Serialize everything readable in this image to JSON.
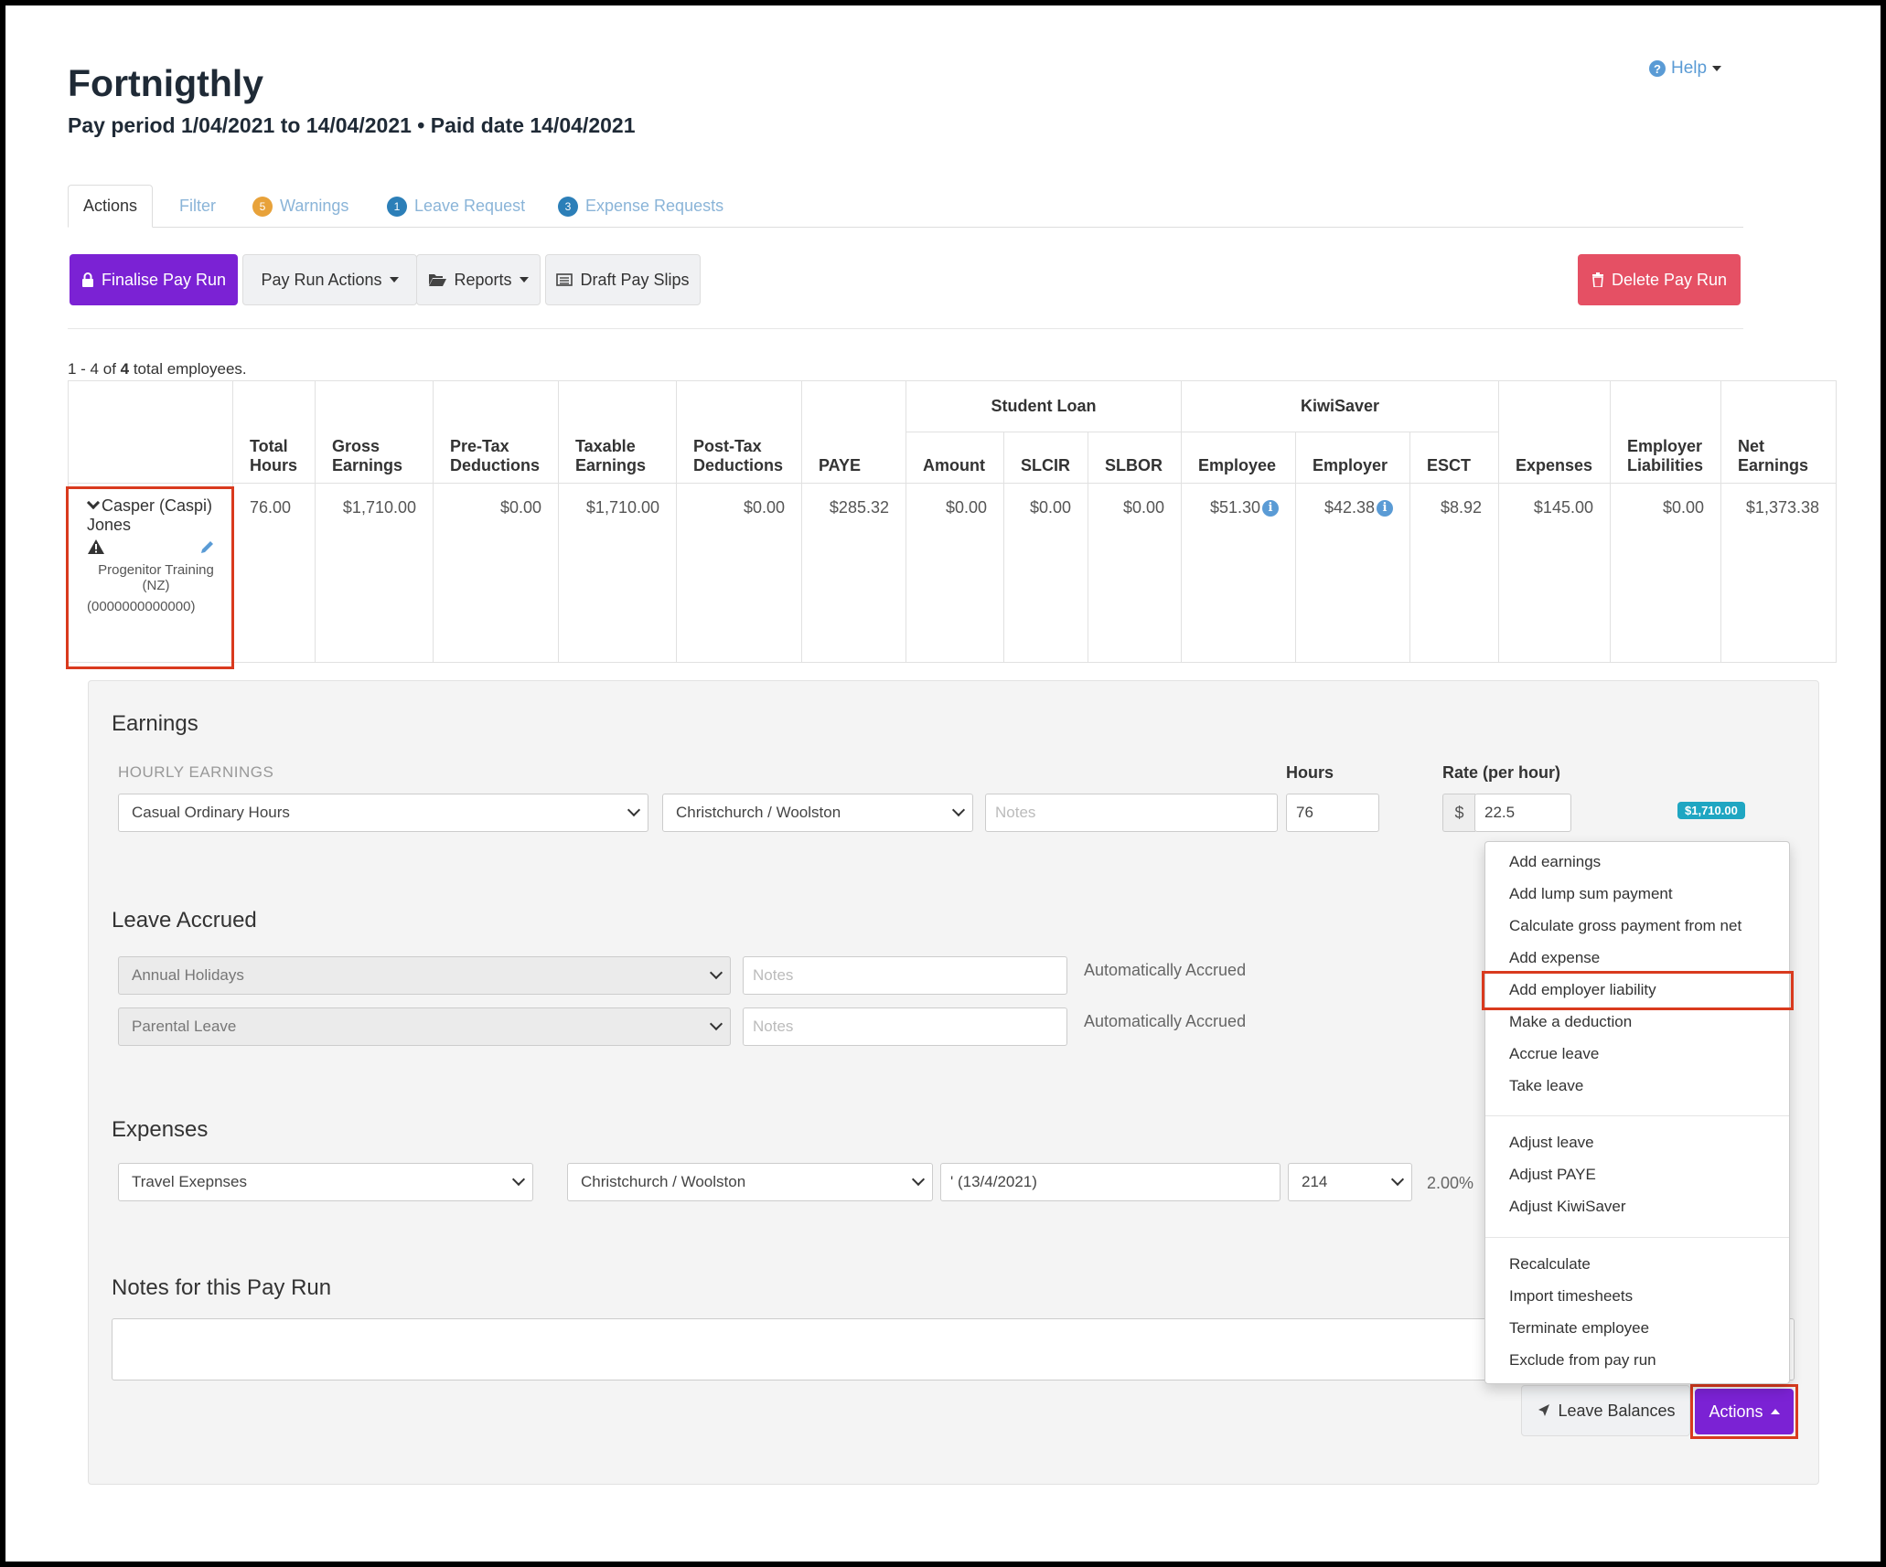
{
  "header": {
    "title": "Fortnigthly",
    "subtitle": "Pay period 1/04/2021 to 14/04/2021 • Paid date 14/04/2021",
    "help_label": "Help"
  },
  "tabs": [
    {
      "label": "Actions"
    },
    {
      "label": "Filter"
    },
    {
      "label": "Warnings",
      "badge": "5",
      "badge_color": "#e8a23a"
    },
    {
      "label": "Leave Request",
      "badge": "1",
      "badge_color": "#2c7fb8"
    },
    {
      "label": "Expense Requests",
      "badge": "3",
      "badge_color": "#2c7fb8"
    }
  ],
  "toolbar": {
    "finalise": "Finalise Pay Run",
    "pay_run_actions": "Pay Run Actions",
    "reports": "Reports",
    "draft_pay_slips": "Draft Pay Slips",
    "delete": "Delete Pay Run"
  },
  "count": {
    "prefix": "1 - 4 of ",
    "total": "4",
    "suffix": " total employees."
  },
  "table": {
    "groups": {
      "student_loan": "Student Loan",
      "kiwisaver": "KiwiSaver"
    },
    "headers": {
      "total_hours": "Total Hours",
      "gross": "Gross Earnings",
      "pretax": "Pre-Tax Deductions",
      "taxable": "Taxable Earnings",
      "posttax": "Post-Tax Deductions",
      "paye": "PAYE",
      "amount": "Amount",
      "slcir": "SLCIR",
      "slbor": "SLBOR",
      "ks_employee": "Employee",
      "ks_employer": "Employer",
      "esct": "ESCT",
      "expenses": "Expenses",
      "employer_liabilities": "Employer Liabilities",
      "net": "Net Earnings"
    },
    "row": {
      "name": "Casper (Caspi) Jones",
      "company": "Progenitor Training (NZ)",
      "ird": "(0000000000000)",
      "total_hours": "76.00",
      "gross": "$1,710.00",
      "pretax": "$0.00",
      "taxable": "$1,710.00",
      "posttax": "$0.00",
      "paye": "$285.32",
      "amount": "$0.00",
      "slcir": "$0.00",
      "slbor": "$0.00",
      "ks_employee": "$51.30",
      "ks_employer": "$42.38",
      "esct": "$8.92",
      "expenses": "$145.00",
      "employer_liabilities": "$0.00",
      "net": "$1,373.38"
    }
  },
  "earnings": {
    "title": "Earnings",
    "hourly_label": "HOURLY EARNINGS",
    "hours_label": "Hours",
    "rate_label": "Rate (per hour)",
    "type": "Casual Ordinary Hours",
    "location": "Christchurch / Woolston",
    "notes_placeholder": "Notes",
    "hours": "76",
    "currency": "$",
    "rate": "22.5",
    "total": "$1,710.00"
  },
  "leave": {
    "title": "Leave Accrued",
    "rows": [
      {
        "type": "Annual Holidays",
        "notes_placeholder": "Notes",
        "status": "Automatically Accrued"
      },
      {
        "type": "Parental Leave",
        "notes_placeholder": "Notes",
        "status": "Automatically Accrued"
      }
    ]
  },
  "expenses": {
    "title": "Expenses",
    "type": "Travel Exepnses",
    "location": "Christchurch / Woolston",
    "description": "' (13/4/2021)",
    "code": "214",
    "percent": "2.00%"
  },
  "notes": {
    "title": "Notes for this Pay Run"
  },
  "footer": {
    "leave_balances": "Leave Balances",
    "actions": "Actions"
  },
  "menu": {
    "group1": [
      "Add earnings",
      "Add lump sum payment",
      "Calculate gross payment from net",
      "Add expense",
      "Add employer liability",
      "Make a deduction",
      "Accrue leave",
      "Take leave"
    ],
    "group2": [
      "Adjust leave",
      "Adjust PAYE",
      "Adjust KiwiSaver"
    ],
    "group3": [
      "Recalculate",
      "Import timesheets",
      "Terminate employee",
      "Exclude from pay run"
    ]
  },
  "colors": {
    "primary": "#7b22d4",
    "danger": "#e55064",
    "highlight": "#d93a1e",
    "link": "#5a9bd5"
  }
}
